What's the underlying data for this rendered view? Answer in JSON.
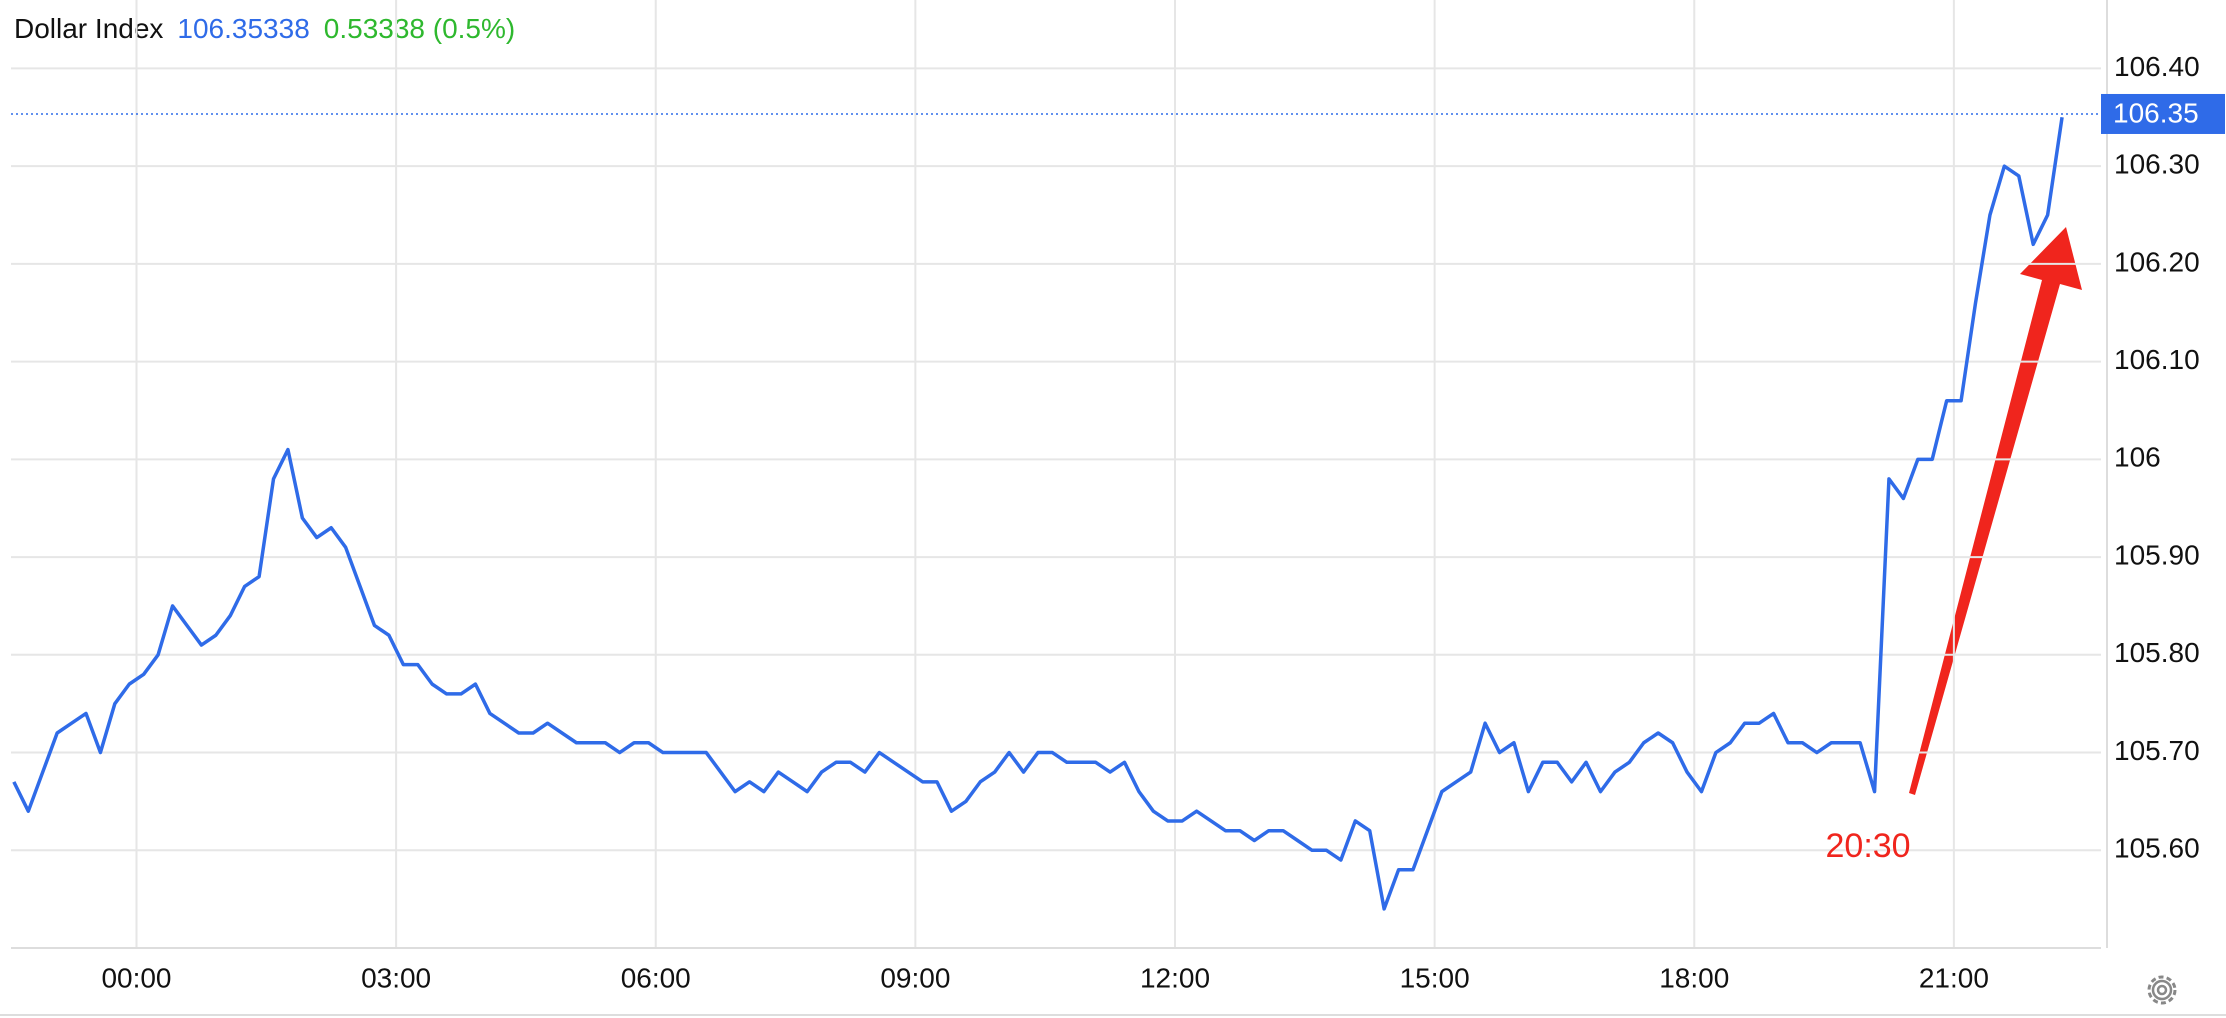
{
  "chart_data": {
    "type": "line",
    "title": "Dollar Index",
    "last_price": {
      "value": 106.35338,
      "label": "106.35"
    },
    "change": "0.53338 (0.5%)",
    "annotation": {
      "value": 1230,
      "label": "20:30"
    },
    "color": "#2f6be8",
    "x": [
      -85,
      -75,
      -65,
      -55,
      -45,
      -35,
      -25,
      -15,
      -5,
      5,
      15,
      25,
      35,
      45,
      55,
      65,
      75,
      85,
      95,
      105,
      115,
      125,
      135,
      145,
      155,
      165,
      175,
      185,
      195,
      205,
      215,
      225,
      235,
      245,
      255,
      265,
      275,
      285,
      295,
      305,
      315,
      325,
      335,
      345,
      355,
      365,
      375,
      385,
      395,
      405,
      415,
      425,
      435,
      445,
      455,
      465,
      475,
      485,
      495,
      505,
      515,
      525,
      535,
      545,
      555,
      565,
      575,
      585,
      595,
      605,
      615,
      625,
      635,
      645,
      655,
      665,
      675,
      685,
      695,
      705,
      715,
      725,
      735,
      745,
      755,
      765,
      775,
      785,
      795,
      805,
      815,
      825,
      835,
      845,
      855,
      865,
      875,
      885,
      895,
      905,
      915,
      925,
      935,
      945,
      955,
      965,
      975,
      985,
      995,
      1005,
      1015,
      1025,
      1035,
      1045,
      1055,
      1065,
      1075,
      1085,
      1095,
      1105,
      1115,
      1125,
      1135,
      1145,
      1155,
      1165,
      1175,
      1185,
      1195,
      1205,
      1215,
      1225,
      1235,
      1245,
      1255,
      1265,
      1275,
      1285,
      1295,
      1305,
      1315,
      1325,
      1335
    ],
    "values": [
      105.67,
      105.64,
      105.68,
      105.72,
      105.73,
      105.74,
      105.7,
      105.75,
      105.77,
      105.78,
      105.8,
      105.85,
      105.83,
      105.81,
      105.82,
      105.84,
      105.87,
      105.88,
      105.98,
      106.01,
      105.94,
      105.92,
      105.93,
      105.91,
      105.87,
      105.83,
      105.82,
      105.79,
      105.79,
      105.77,
      105.76,
      105.76,
      105.77,
      105.74,
      105.73,
      105.72,
      105.72,
      105.73,
      105.72,
      105.71,
      105.71,
      105.71,
      105.7,
      105.71,
      105.71,
      105.7,
      105.7,
      105.7,
      105.7,
      105.68,
      105.66,
      105.67,
      105.66,
      105.68,
      105.67,
      105.66,
      105.68,
      105.69,
      105.69,
      105.68,
      105.7,
      105.69,
      105.68,
      105.67,
      105.67,
      105.64,
      105.65,
      105.67,
      105.68,
      105.7,
      105.68,
      105.7,
      105.7,
      105.69,
      105.69,
      105.69,
      105.68,
      105.69,
      105.66,
      105.64,
      105.63,
      105.63,
      105.64,
      105.63,
      105.62,
      105.62,
      105.61,
      105.62,
      105.62,
      105.61,
      105.6,
      105.6,
      105.59,
      105.63,
      105.62,
      105.54,
      105.58,
      105.58,
      105.62,
      105.66,
      105.67,
      105.68,
      105.73,
      105.7,
      105.71,
      105.66,
      105.69,
      105.69,
      105.67,
      105.69,
      105.66,
      105.68,
      105.69,
      105.71,
      105.72,
      105.71,
      105.68,
      105.66,
      105.7,
      105.71,
      105.73,
      105.73,
      105.74,
      105.71,
      105.71,
      105.7,
      105.71,
      105.71,
      105.71,
      105.66,
      105.98,
      105.96,
      106,
      106,
      106.06,
      106.06,
      106.16,
      106.25,
      106.3,
      106.29,
      106.22,
      106.25,
      106.35
    ],
    "xlim": [
      -87,
      1362
    ],
    "xticks": [
      {
        "value": 0,
        "label": "00:00"
      },
      {
        "value": 180,
        "label": "03:00"
      },
      {
        "value": 360,
        "label": "06:00"
      },
      {
        "value": 540,
        "label": "09:00"
      },
      {
        "value": 720,
        "label": "12:00"
      },
      {
        "value": 900,
        "label": "15:00"
      },
      {
        "value": 1080,
        "label": "18:00"
      },
      {
        "value": 1260,
        "label": "21:00"
      }
    ],
    "ylim": [
      105.5,
      106.47
    ],
    "yticks": [
      {
        "value": 105.6,
        "label": "105.60"
      },
      {
        "value": 105.7,
        "label": "105.70"
      },
      {
        "value": 105.8,
        "label": "105.80"
      },
      {
        "value": 105.9,
        "label": "105.90"
      },
      106,
      {
        "value": 106.1,
        "label": "106.10"
      },
      {
        "value": 106.2,
        "label": "106.20"
      },
      {
        "value": 106.3,
        "label": "106.30"
      },
      {
        "value": 106.4,
        "label": "106.40"
      }
    ],
    "grid": true
  }
}
